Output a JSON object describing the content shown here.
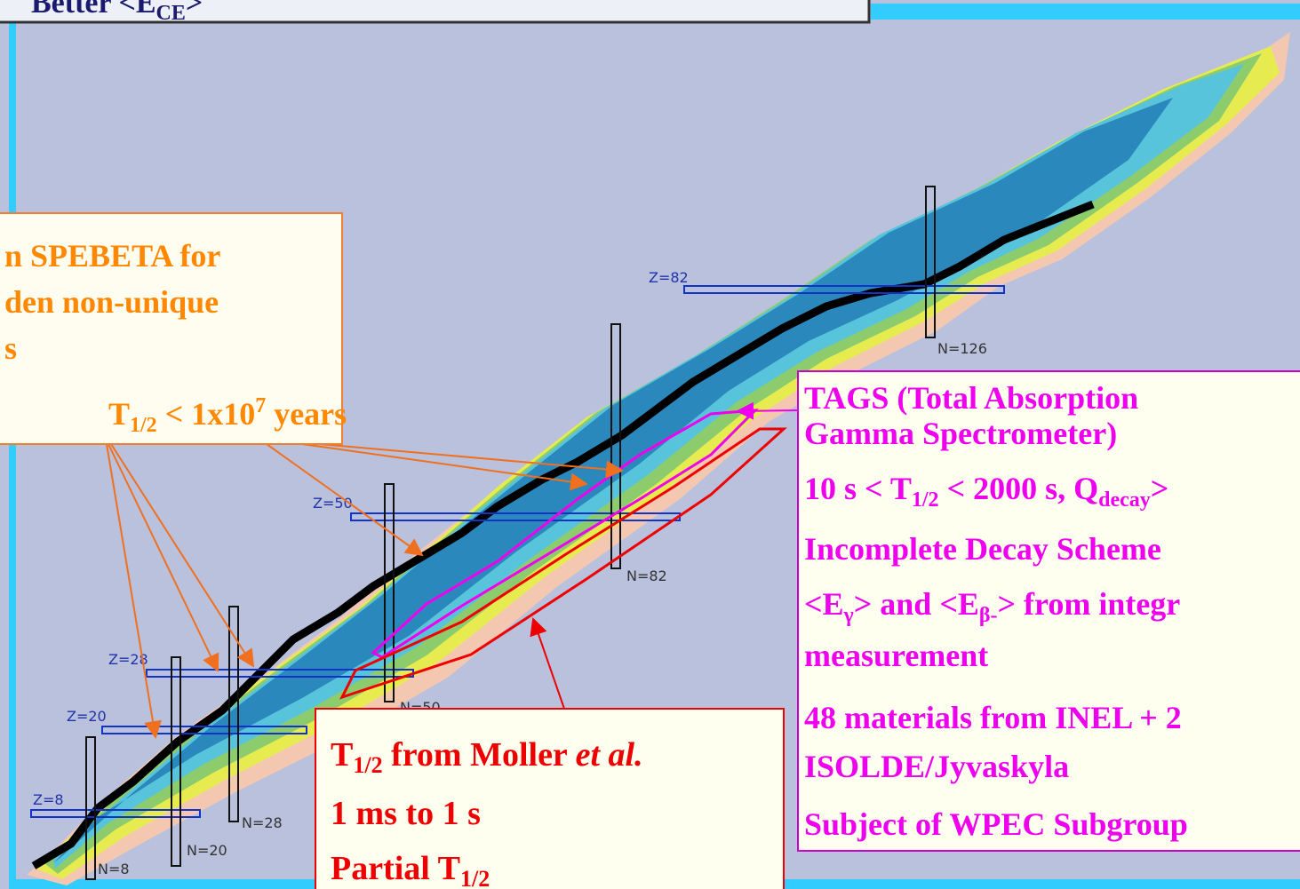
{
  "header": {
    "title": [
      "Better <E",
      "CE",
      ">"
    ]
  },
  "spebeta_box": {
    "lines": [
      [
        "n SPEBETA for"
      ],
      [
        "den non-unique"
      ],
      [
        "s"
      ],
      [
        "T",
        "1/2",
        " < 1x10",
        "7",
        " years"
      ]
    ]
  },
  "magic_numbers": {
    "z": [
      "Z=82",
      "Z=50",
      "Z=28",
      "Z=20",
      "Z=8"
    ],
    "n": [
      "N=126",
      "N=82",
      "N=50",
      "N=28",
      "N=20",
      "N=8"
    ]
  },
  "tags_box": {
    "lines": [
      [
        "TAGS  (Total Absorption"
      ],
      [
        "Gamma Spectrometer)"
      ],
      [
        "10 s < T",
        "1/2",
        " < 2000 s, Q",
        "decay",
        ">"
      ],
      [
        "Incomplete Decay Scheme"
      ],
      [
        "<E",
        "γ",
        "> and <E",
        "β-",
        "> from integr"
      ],
      [
        "measurement"
      ],
      [
        "48 materials from INEL + 2"
      ],
      [
        "ISOLDE/Jyvaskyla"
      ],
      [
        "Subject of WPEC Subgroup"
      ]
    ]
  },
  "moller_box": {
    "lines": [
      [
        "T",
        "1/2",
        " from Moller ",
        "et al."
      ],
      [
        "1 ms to 1 s"
      ],
      [
        "Partial  T",
        "1/2"
      ]
    ]
  }
}
